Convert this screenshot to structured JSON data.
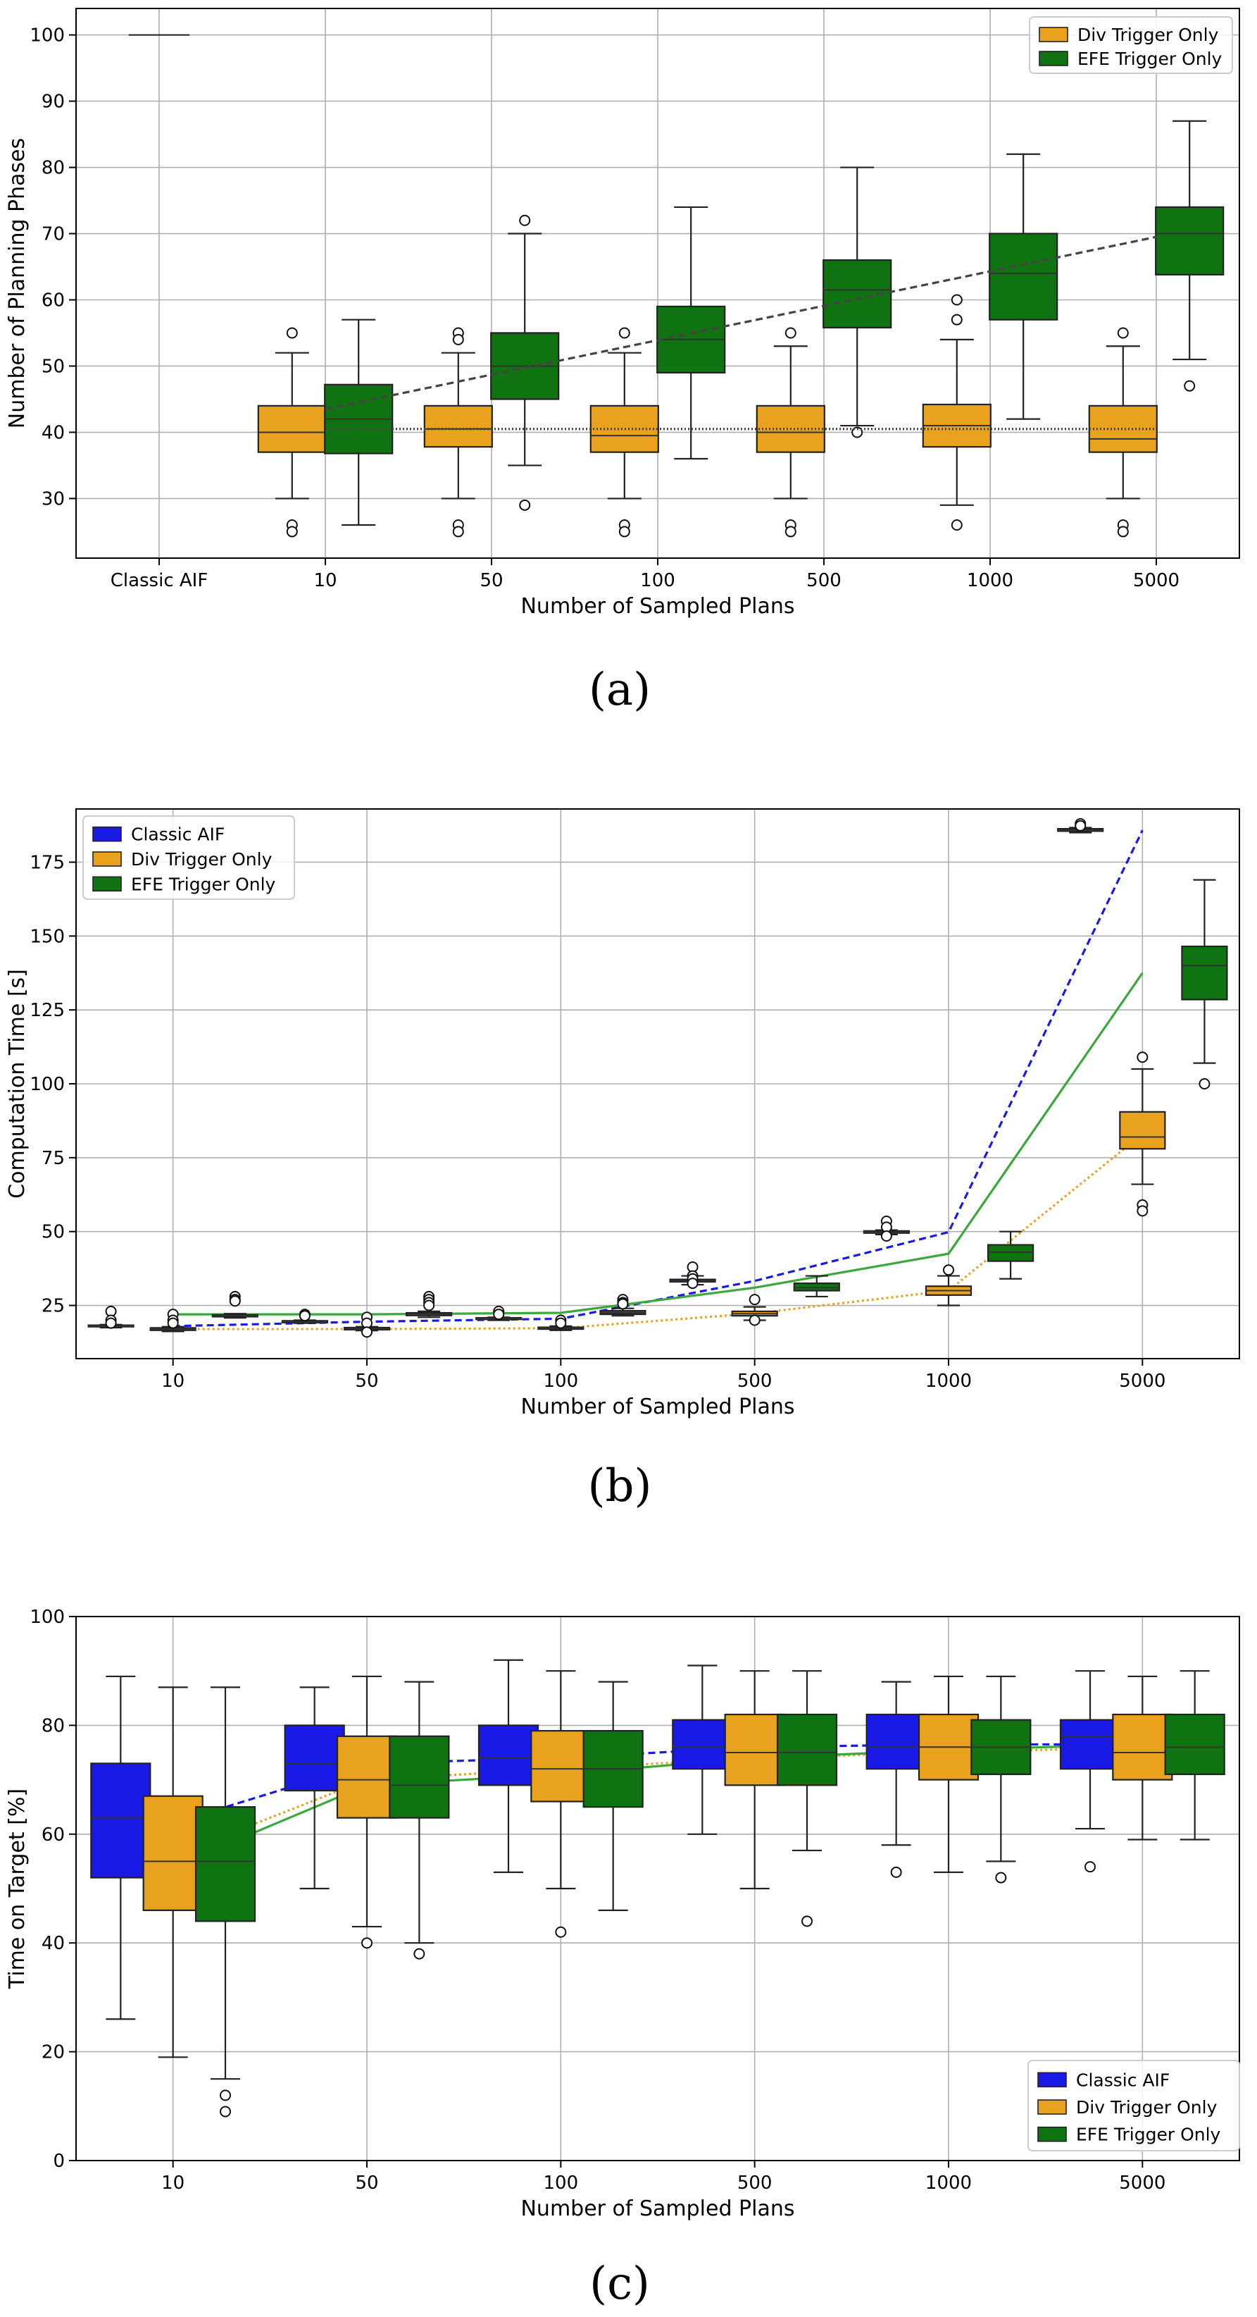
{
  "figure": {
    "panel_labels": [
      "(a)",
      "(b)",
      "(c)"
    ]
  },
  "colors": {
    "classic": "#1a1ae6",
    "div": "#e8a21e",
    "efe": "#0f7312",
    "efe_line": "#3aa83a",
    "trend_dark": "#444444",
    "grid": "#b0b0b0",
    "axis": "#000000",
    "median": "#333333"
  },
  "chart_data": [
    {
      "type": "box",
      "panel": "(a)",
      "xlabel": "Number of Sampled Plans",
      "ylabel": "Number of Planning Phases",
      "ylim": [
        21,
        104
      ],
      "yticks": [
        30,
        40,
        50,
        60,
        70,
        80,
        90,
        100
      ],
      "categories": [
        "Classic AIF",
        "10",
        "50",
        "100",
        "500",
        "1000",
        "5000"
      ],
      "legend": {
        "position": "top-right",
        "entries": [
          "Div Trigger Only",
          "EFE Trigger Only"
        ]
      },
      "series": [
        {
          "name": "Classic AIF",
          "color_key": "classic",
          "show_box": false,
          "boxes": [
            {
              "cat": 0,
              "min": 100,
              "q1": 100,
              "median": 100,
              "q3": 100,
              "max": 100,
              "outliers": []
            }
          ]
        },
        {
          "name": "Div Trigger Only",
          "color_key": "div",
          "offset": -0.2,
          "boxes": [
            {
              "cat": 1,
              "min": 30,
              "q1": 37,
              "median": 40,
              "q3": 44,
              "max": 52,
              "outliers": [
                55,
                26,
                25
              ]
            },
            {
              "cat": 2,
              "min": 30,
              "q1": 37.8,
              "median": 40.5,
              "q3": 44,
              "max": 52,
              "outliers": [
                55,
                54,
                26,
                25
              ]
            },
            {
              "cat": 3,
              "min": 30,
              "q1": 37,
              "median": 39.5,
              "q3": 44,
              "max": 52,
              "outliers": [
                55,
                26,
                25
              ]
            },
            {
              "cat": 4,
              "min": 30,
              "q1": 37,
              "median": 40,
              "q3": 44,
              "max": 53,
              "outliers": [
                55,
                26,
                25
              ]
            },
            {
              "cat": 5,
              "min": 29,
              "q1": 37.8,
              "median": 41,
              "q3": 44.2,
              "max": 54,
              "outliers": [
                60,
                57,
                26
              ]
            },
            {
              "cat": 6,
              "min": 30,
              "q1": 37,
              "median": 39,
              "q3": 44,
              "max": 53,
              "outliers": [
                55,
                26,
                25
              ]
            }
          ]
        },
        {
          "name": "EFE Trigger Only",
          "color_key": "efe",
          "offset": 0.2,
          "boxes": [
            {
              "cat": 1,
              "min": 26,
              "q1": 36.8,
              "median": 42,
              "q3": 47.2,
              "max": 57,
              "outliers": []
            },
            {
              "cat": 2,
              "min": 35,
              "q1": 45,
              "median": 50,
              "q3": 55,
              "max": 70,
              "outliers": [
                72,
                29
              ]
            },
            {
              "cat": 3,
              "min": 36,
              "q1": 49,
              "median": 54,
              "q3": 59,
              "max": 74,
              "outliers": []
            },
            {
              "cat": 4,
              "min": 41,
              "q1": 55.8,
              "median": 61.5,
              "q3": 66,
              "max": 80,
              "outliers": [
                40
              ]
            },
            {
              "cat": 5,
              "min": 42,
              "q1": 57,
              "median": 64,
              "q3": 70,
              "max": 82,
              "outliers": []
            },
            {
              "cat": 6,
              "min": 51,
              "q1": 63.8,
              "median": 70,
              "q3": 74,
              "max": 87,
              "outliers": [
                47
              ]
            }
          ]
        }
      ],
      "trend_lines": [
        {
          "name": "div-mean-trend",
          "color_key": "trend_dark",
          "dash": "2,3",
          "x": [
            1,
            6
          ],
          "y": [
            40.5,
            40.5
          ]
        },
        {
          "name": "efe-mean-trend",
          "color_key": "trend_dark",
          "dash": "10,6",
          "x": [
            1,
            6
          ],
          "y": [
            43.5,
            69.5
          ]
        }
      ]
    },
    {
      "type": "box",
      "panel": "(b)",
      "xlabel": "Number of Sampled Plans",
      "ylabel": "Computation Time [s]",
      "ylim": [
        7,
        193
      ],
      "yticks": [
        25,
        50,
        75,
        100,
        125,
        150,
        175
      ],
      "categories": [
        "10",
        "50",
        "100",
        "500",
        "1000",
        "5000"
      ],
      "legend": {
        "position": "top-left",
        "entries": [
          "Classic AIF",
          "Div Trigger Only",
          "EFE Trigger Only"
        ]
      },
      "series": [
        {
          "name": "Classic AIF",
          "color_key": "classic",
          "offset": -0.32,
          "boxes": [
            {
              "cat": 0,
              "min": 17.5,
              "q1": 17.8,
              "median": 18,
              "q3": 18.3,
              "max": 18.5,
              "outliers": [
                23,
                20,
                19
              ]
            },
            {
              "cat": 1,
              "min": 19,
              "q1": 19.2,
              "median": 19.5,
              "q3": 19.8,
              "max": 20,
              "outliers": [
                22,
                21.5
              ]
            },
            {
              "cat": 2,
              "min": 20,
              "q1": 20.3,
              "median": 20.5,
              "q3": 20.8,
              "max": 21,
              "outliers": [
                23,
                22
              ]
            },
            {
              "cat": 3,
              "min": 32,
              "q1": 33,
              "median": 33.3,
              "q3": 33.8,
              "max": 35,
              "outliers": [
                38,
                35,
                34,
                32.5
              ]
            },
            {
              "cat": 4,
              "min": 49,
              "q1": 49.5,
              "median": 49.8,
              "q3": 50.2,
              "max": 50.5,
              "outliers": [
                53.5,
                51.5,
                48.5
              ]
            },
            {
              "cat": 5,
              "min": 185,
              "q1": 185.5,
              "median": 185.8,
              "q3": 186.3,
              "max": 186.7,
              "outliers": [
                188,
                187.3
              ]
            }
          ]
        },
        {
          "name": "Div Trigger Only",
          "color_key": "div",
          "offset": 0,
          "boxes": [
            {
              "cat": 0,
              "min": 16.2,
              "q1": 16.6,
              "median": 17,
              "q3": 17.4,
              "max": 17.8,
              "outliers": [
                22,
                20,
                19
              ]
            },
            {
              "cat": 1,
              "min": 16.5,
              "q1": 16.8,
              "median": 17.1,
              "q3": 17.5,
              "max": 17.8,
              "outliers": [
                21,
                19,
                16
              ]
            },
            {
              "cat": 2,
              "min": 16.6,
              "q1": 17,
              "median": 17.3,
              "q3": 17.6,
              "max": 18,
              "outliers": [
                20,
                19
              ]
            },
            {
              "cat": 3,
              "min": 20,
              "q1": 21.5,
              "median": 22.2,
              "q3": 23,
              "max": 24.5,
              "outliers": [
                27,
                20
              ]
            },
            {
              "cat": 4,
              "min": 25,
              "q1": 28.5,
              "median": 30,
              "q3": 31.5,
              "max": 35,
              "outliers": [
                37
              ]
            },
            {
              "cat": 5,
              "min": 66,
              "q1": 78,
              "median": 82,
              "q3": 90.5,
              "max": 105,
              "outliers": [
                109,
                59,
                57
              ]
            }
          ]
        },
        {
          "name": "EFE Trigger Only",
          "color_key": "efe",
          "offset": 0.32,
          "boxes": [
            {
              "cat": 0,
              "min": 20.8,
              "q1": 21.2,
              "median": 21.5,
              "q3": 21.8,
              "max": 22.2,
              "outliers": [
                28,
                27,
                26.5
              ]
            },
            {
              "cat": 1,
              "min": 21,
              "q1": 21.6,
              "median": 22,
              "q3": 22.5,
              "max": 23,
              "outliers": [
                28,
                27,
                26,
                25
              ]
            },
            {
              "cat": 2,
              "min": 21.5,
              "q1": 22,
              "median": 22.5,
              "q3": 23.2,
              "max": 24,
              "outliers": [
                27,
                26,
                25.5
              ]
            },
            {
              "cat": 3,
              "min": 28,
              "q1": 30,
              "median": 31,
              "q3": 32.5,
              "max": 35,
              "outliers": []
            },
            {
              "cat": 4,
              "min": 34,
              "q1": 40,
              "median": 43,
              "q3": 45.5,
              "max": 50,
              "outliers": []
            },
            {
              "cat": 5,
              "min": 107,
              "q1": 128.5,
              "median": 140,
              "q3": 146.5,
              "max": 169,
              "outliers": [
                100
              ]
            }
          ]
        }
      ],
      "trend_lines": [
        {
          "name": "classic-mean-trend",
          "color_key": "classic",
          "dash": "10,6",
          "x": [
            0,
            1,
            2,
            3,
            4,
            5
          ],
          "y": [
            18,
            19.5,
            20.5,
            33.3,
            49.8,
            185.8
          ]
        },
        {
          "name": "efe-mean-trend",
          "color_key": "efe_line",
          "dash": "",
          "x": [
            0,
            1,
            2,
            3,
            4,
            5
          ],
          "y": [
            22,
            22,
            22.5,
            31,
            42.5,
            137.5
          ]
        },
        {
          "name": "div-mean-trend",
          "color_key": "div",
          "dash": "3,4",
          "x": [
            0,
            1,
            2,
            3,
            4,
            5
          ],
          "y": [
            17,
            17,
            17.3,
            22.3,
            30,
            83
          ]
        }
      ]
    },
    {
      "type": "box",
      "panel": "(c)",
      "xlabel": "Number of Sampled Plans",
      "ylabel": "Time on Target [%]",
      "ylim": [
        0,
        100
      ],
      "yticks": [
        0,
        20,
        40,
        60,
        80,
        100
      ],
      "categories": [
        "10",
        "50",
        "100",
        "500",
        "1000",
        "5000"
      ],
      "legend": {
        "position": "bottom-right",
        "entries": [
          "Classic AIF",
          "Div Trigger Only",
          "EFE Trigger Only"
        ]
      },
      "series": [
        {
          "name": "Classic AIF",
          "color_key": "classic",
          "offset": -0.27,
          "boxes": [
            {
              "cat": 0,
              "min": 26,
              "q1": 52,
              "median": 63,
              "q3": 73,
              "max": 89,
              "outliers": []
            },
            {
              "cat": 1,
              "min": 50,
              "q1": 68,
              "median": 73,
              "q3": 80,
              "max": 87,
              "outliers": []
            },
            {
              "cat": 2,
              "min": 53,
              "q1": 69,
              "median": 74,
              "q3": 80,
              "max": 92,
              "outliers": []
            },
            {
              "cat": 3,
              "min": 60,
              "q1": 72,
              "median": 76,
              "q3": 81,
              "max": 91,
              "outliers": []
            },
            {
              "cat": 4,
              "min": 58,
              "q1": 72,
              "median": 76,
              "q3": 82,
              "max": 88,
              "outliers": [
                53
              ]
            },
            {
              "cat": 5,
              "min": 61,
              "q1": 72,
              "median": 78,
              "q3": 81,
              "max": 90,
              "outliers": [
                54
              ]
            }
          ]
        },
        {
          "name": "Div Trigger Only",
          "color_key": "div",
          "offset": 0,
          "boxes": [
            {
              "cat": 0,
              "min": 19,
              "q1": 46,
              "median": 55,
              "q3": 67,
              "max": 87,
              "outliers": []
            },
            {
              "cat": 1,
              "min": 43,
              "q1": 63,
              "median": 70,
              "q3": 78,
              "max": 89,
              "outliers": [
                40
              ]
            },
            {
              "cat": 2,
              "min": 50,
              "q1": 66,
              "median": 72,
              "q3": 79,
              "max": 90,
              "outliers": [
                42
              ]
            },
            {
              "cat": 3,
              "min": 50,
              "q1": 69,
              "median": 75,
              "q3": 82,
              "max": 90,
              "outliers": []
            },
            {
              "cat": 4,
              "min": 53,
              "q1": 70,
              "median": 76,
              "q3": 82,
              "max": 89,
              "outliers": []
            },
            {
              "cat": 5,
              "min": 59,
              "q1": 70,
              "median": 75,
              "q3": 82,
              "max": 89,
              "outliers": []
            }
          ]
        },
        {
          "name": "EFE Trigger Only",
          "color_key": "efe",
          "offset": 0.27,
          "boxes": [
            {
              "cat": 0,
              "min": 15,
              "q1": 44,
              "median": 55,
              "q3": 65,
              "max": 87,
              "outliers": [
                12,
                9
              ]
            },
            {
              "cat": 1,
              "min": 40,
              "q1": 63,
              "median": 69,
              "q3": 78,
              "max": 88,
              "outliers": [
                38
              ]
            },
            {
              "cat": 2,
              "min": 46,
              "q1": 65,
              "median": 72,
              "q3": 79,
              "max": 88,
              "outliers": []
            },
            {
              "cat": 3,
              "min": 57,
              "q1": 69,
              "median": 75,
              "q3": 82,
              "max": 90,
              "outliers": [
                44
              ]
            },
            {
              "cat": 4,
              "min": 55,
              "q1": 71,
              "median": 76,
              "q3": 81,
              "max": 89,
              "outliers": [
                52
              ]
            },
            {
              "cat": 5,
              "min": 59,
              "q1": 71,
              "median": 76,
              "q3": 82,
              "max": 90,
              "outliers": []
            }
          ]
        }
      ],
      "trend_lines": [
        {
          "name": "classic-mean-trend",
          "color_key": "classic",
          "dash": "10,6",
          "x": [
            0,
            1,
            2,
            3,
            4,
            5
          ],
          "y": [
            62,
            73,
            74,
            76,
            76.5,
            76.5
          ]
        },
        {
          "name": "div-mean-trend",
          "color_key": "div",
          "dash": "3,4",
          "x": [
            0,
            1,
            2,
            3,
            4,
            5
          ],
          "y": [
            56,
            70,
            72,
            74,
            75,
            76
          ]
        },
        {
          "name": "efe-mean-trend",
          "color_key": "efe_line",
          "dash": "",
          "x": [
            0,
            1,
            2,
            3,
            4,
            5
          ],
          "y": [
            54,
            69,
            71,
            74,
            75.5,
            76.5
          ]
        }
      ]
    }
  ]
}
